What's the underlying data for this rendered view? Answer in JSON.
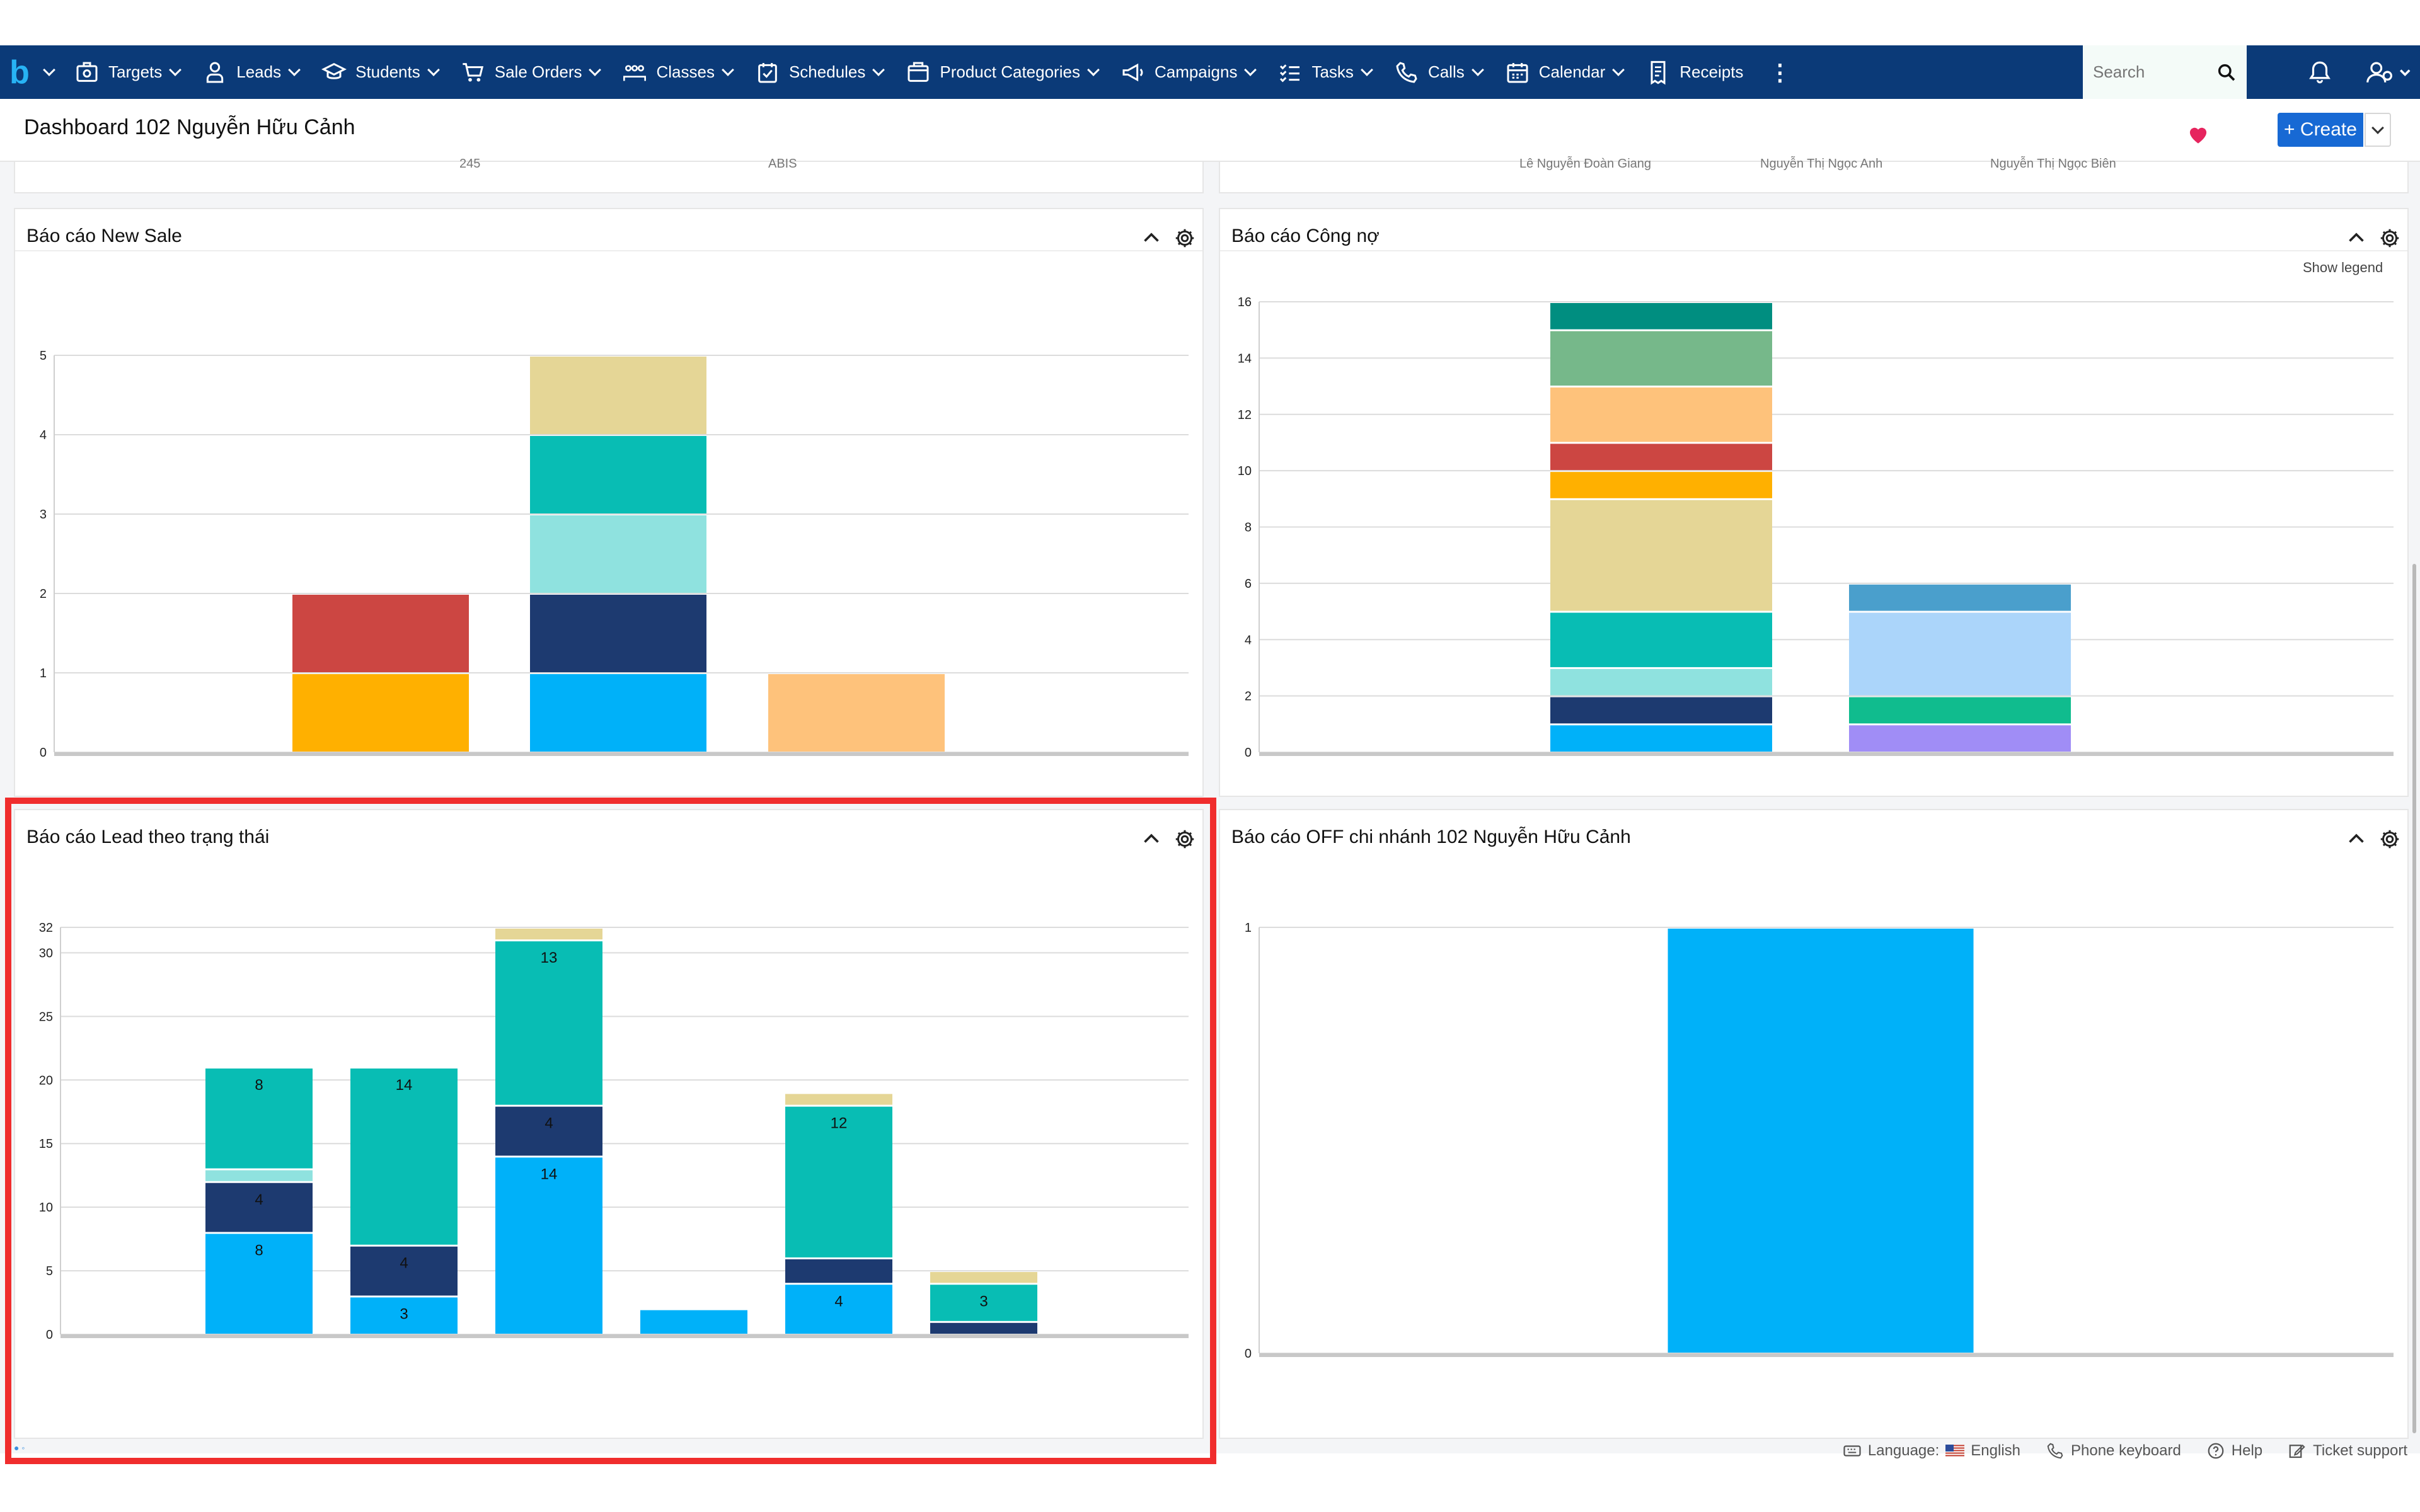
{
  "nav": {
    "items": [
      {
        "label": "Targets",
        "icon": "target-icon"
      },
      {
        "label": "Leads",
        "icon": "lead-icon"
      },
      {
        "label": "Students",
        "icon": "graduation-cap-icon"
      },
      {
        "label": "Sale Orders",
        "icon": "cart-icon"
      },
      {
        "label": "Classes",
        "icon": "classroom-icon"
      },
      {
        "label": "Schedules",
        "icon": "calendar-check-icon"
      },
      {
        "label": "Product Categories",
        "icon": "catalog-icon"
      },
      {
        "label": "Campaigns",
        "icon": "megaphone-icon"
      },
      {
        "label": "Tasks",
        "icon": "task-list-icon"
      },
      {
        "label": "Calls",
        "icon": "phone-icon"
      },
      {
        "label": "Calendar",
        "icon": "calendar-icon"
      },
      {
        "label": "Receipts",
        "icon": "receipt-icon"
      }
    ],
    "search_placeholder": "Search"
  },
  "header": {
    "title": "Dashboard 102 Nguyễn Hữu Cảnh",
    "create_label": "+ Create"
  },
  "prev_row": {
    "left_labels": [
      "245",
      "ABIS"
    ],
    "right_labels": [
      "Lê Nguyễn Đoàn Giang",
      "Nguyễn Thị Ngọc Anh",
      "Nguyễn Thị Ngọc Biên"
    ]
  },
  "panels": {
    "new_sale": {
      "title": "Báo cáo New Sale"
    },
    "cong_no": {
      "title": "Báo cáo Công nợ",
      "show_legend": "Show legend"
    },
    "lead_status": {
      "title": "Báo cáo Lead theo trạng thái"
    },
    "off": {
      "title": "Báo cáo OFF chi nhánh 102 Nguyễn Hữu Cảnh"
    }
  },
  "footer": {
    "language_label": "Language:",
    "language_value": "English",
    "phone_keyboard": "Phone keyboard",
    "help": "Help",
    "ticket_support": "Ticket support"
  },
  "colors": {
    "nav_bg": "#0b3a78",
    "create_button": "#1769d4",
    "highlight_border": "#f02d2d"
  },
  "chart_data": [
    {
      "id": "new_sale",
      "type": "bar",
      "stacked": true,
      "ylim": [
        0,
        5
      ],
      "yticks": [
        0,
        1,
        2,
        3,
        4,
        5
      ],
      "grid": true,
      "categories": [
        "",
        "",
        ""
      ],
      "stacks": [
        [
          {
            "value": 1,
            "color": "#ffb000"
          },
          {
            "value": 1,
            "color": "#cc4642"
          }
        ],
        [
          {
            "value": 1,
            "color": "#00b1f9"
          },
          {
            "value": 1,
            "color": "#1d3a70"
          },
          {
            "value": 1,
            "color": "#8fe2df"
          },
          {
            "value": 1,
            "color": "#08bdb4"
          },
          {
            "value": 1,
            "color": "#e5d696"
          }
        ],
        [
          {
            "value": 1,
            "color": "#fec27b"
          }
        ]
      ]
    },
    {
      "id": "cong_no",
      "type": "bar",
      "stacked": true,
      "ylim": [
        0,
        16
      ],
      "yticks": [
        0,
        2,
        4,
        6,
        8,
        10,
        12,
        14,
        16
      ],
      "grid": true,
      "categories": [
        "",
        ""
      ],
      "stacks": [
        [
          {
            "value": 1,
            "color": "#00b1f9"
          },
          {
            "value": 1,
            "color": "#1d3a70"
          },
          {
            "value": 1,
            "color": "#8fe2df"
          },
          {
            "value": 2,
            "color": "#08bdb4"
          },
          {
            "value": 4,
            "color": "#e5d696"
          },
          {
            "value": 1,
            "color": "#ffb000"
          },
          {
            "value": 1,
            "color": "#cc4642"
          },
          {
            "value": 2,
            "color": "#fec27b"
          },
          {
            "value": 2,
            "color": "#76b88a"
          },
          {
            "value": 1,
            "color": "#008e80"
          }
        ],
        [
          {
            "value": 1,
            "color": "#a08df6"
          },
          {
            "value": 1,
            "color": "#10bc8e"
          },
          {
            "value": 3,
            "color": "#abd5fa"
          },
          {
            "value": 1,
            "color": "#4a9fcc"
          }
        ]
      ]
    },
    {
      "id": "lead_status",
      "type": "bar",
      "stacked": true,
      "ylim": [
        0,
        32
      ],
      "yticks": [
        0,
        5,
        10,
        15,
        20,
        25,
        30,
        32
      ],
      "grid": true,
      "categories": [
        "",
        "",
        "",
        "",
        "",
        ""
      ],
      "stacks": [
        [
          {
            "value": 8,
            "color": "#00b1f9",
            "label": "8"
          },
          {
            "value": 4,
            "color": "#1d3a70",
            "label": "4"
          },
          {
            "value": 1,
            "color": "#8fe2df"
          },
          {
            "value": 8,
            "color": "#08bdb4",
            "label": "8"
          }
        ],
        [
          {
            "value": 3,
            "color": "#00b1f9",
            "label": "3"
          },
          {
            "value": 4,
            "color": "#1d3a70",
            "label": "4"
          },
          {
            "value": 14,
            "color": "#08bdb4",
            "label": "14"
          }
        ],
        [
          {
            "value": 14,
            "color": "#00b1f9",
            "label": "14"
          },
          {
            "value": 4,
            "color": "#1d3a70",
            "label": "4"
          },
          {
            "value": 13,
            "color": "#08bdb4",
            "label": "13"
          },
          {
            "value": 1,
            "color": "#e5d696"
          }
        ],
        [
          {
            "value": 2,
            "color": "#00b1f9"
          }
        ],
        [
          {
            "value": 4,
            "color": "#00b1f9",
            "label": "4"
          },
          {
            "value": 2,
            "color": "#1d3a70"
          },
          {
            "value": 12,
            "color": "#08bdb4",
            "label": "12"
          },
          {
            "value": 1,
            "color": "#e5d696"
          }
        ],
        [
          {
            "value": 1,
            "color": "#1d3a70"
          },
          {
            "value": 3,
            "color": "#08bdb4",
            "label": "3"
          },
          {
            "value": 1,
            "color": "#e5d696"
          }
        ]
      ]
    },
    {
      "id": "off",
      "type": "bar",
      "stacked": true,
      "ylim": [
        0,
        1
      ],
      "yticks": [
        0,
        1
      ],
      "grid": true,
      "categories": [
        ""
      ],
      "stacks": [
        [
          {
            "value": 1,
            "color": "#00b1f9"
          }
        ]
      ]
    }
  ]
}
